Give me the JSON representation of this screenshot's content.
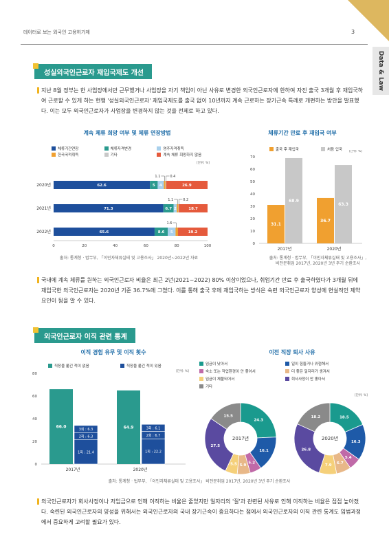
{
  "header": {
    "title": "데이터로 보는 외국인 고용허가제",
    "page": "3",
    "tab": "Data & Law"
  },
  "section1": {
    "title": "성실외국인근로자 재입국제도 개선",
    "para1": "지난 8월 정부는 한 사업장에서만 근무했거나 사업장을 자기 책임이 아닌 사유로 변경한 외국인근로자에 한하여 자진 출국 3개월 후 재입국하여 근로할 수 있게 하는 현행 '성실외국인근로자' 재입국제도를 출국 없이 10년까지 계속 근로하는 장기근속 특례로 개편하는 방안을 발표했다. 이는 모두 외국인근로자가 사업장을 변경하지 않는 것을 전제로 하고 있다.",
    "para2": "국내에 계속 체류를 원하는 외국인근로자 비율은 최근 2년(2021~2022) 80% 이상이었으나, 취업기간 만료 후 출국하였다가 3개월 뒤에 재입국한 외국인근로자는 2020년 기준 36.7%에 그쳤다. 이를 통해 출국 후에 재입국하는 방식은 숙련 외국인근로자 양성에 현실적인 제약 요인이 됨을 알 수 있다."
  },
  "chart1": {
    "title": "계속 체류 희망 여부 및 체류 연장방법",
    "unit": "[단위: %]",
    "source": "출처: 통계청 · 법무부, 「이민자체류실태 및 고용조사」 2020년~2022년 자료",
    "legend": [
      {
        "name": "체류기간연장",
        "color": "#1e4f9c"
      },
      {
        "name": "체류자격변경",
        "color": "#2a9a8e"
      },
      {
        "name": "영주자격취득",
        "color": "#a8d0ec"
      },
      {
        "name": "한국국적취득",
        "color": "#f0a030"
      },
      {
        "name": "기타",
        "color": "#c8c8c8"
      },
      {
        "name": "계속 체류 희망하지 않음",
        "color": "#e55a3c"
      }
    ],
    "rows": [
      {
        "year": "2020년",
        "seg_labels": [
          "62.6",
          "5",
          "4",
          "",
          "",
          "26.9"
        ],
        "callouts": [
          "1.1",
          "0.4"
        ]
      },
      {
        "year": "2021년",
        "seg_labels": [
          "71.3",
          "6.7",
          "2",
          "",
          "",
          "18.7"
        ],
        "callouts": [
          "1.1",
          "0.2"
        ]
      },
      {
        "year": "2022년",
        "seg_labels": [
          "65.6",
          "8.6",
          "5",
          "",
          "",
          "19.2"
        ],
        "callouts": [
          "1.6"
        ]
      }
    ],
    "xticks": [
      "0",
      "20",
      "40",
      "60",
      "80",
      "100"
    ]
  },
  "chart2": {
    "title": "체류기간 만료 후 재입국 여부",
    "unit": "[단위: %]",
    "legend": [
      {
        "name": "출국 후 재입국",
        "color": "#f0a030"
      },
      {
        "name": "처음 입국",
        "color": "#c8c8c8"
      }
    ],
    "yticks": [
      "0",
      "10",
      "20",
      "30",
      "40",
      "50",
      "60",
      "70"
    ],
    "years": [
      "2017년",
      "2020년"
    ],
    "bar_labels": [
      "31.1",
      "68.9",
      "36.7",
      "63.3"
    ],
    "source1": "출처: 통계청 · 법무부, 「이민자체류실태 및 고용조사」,",
    "source2": "비전문취업 2017년, 2020년 3년 주기 순환조사"
  },
  "chart_data": [
    {
      "type": "bar",
      "title": "계속 체류 희망 여부 및 체류 연장방법",
      "categories": [
        "2020년",
        "2021년",
        "2022년"
      ],
      "xlim": [
        0,
        100
      ],
      "series": [
        {
          "name": "체류기간연장",
          "values": [
            62.6,
            71.3,
            65.6
          ]
        },
        {
          "name": "체류자격변경",
          "values": [
            5,
            6.7,
            8.6
          ]
        },
        {
          "name": "영주자격취득",
          "values": [
            4,
            2,
            5
          ]
        },
        {
          "name": "한국국적취득",
          "values": [
            1.1,
            1.1,
            1.6
          ]
        },
        {
          "name": "기타",
          "values": [
            0.4,
            0.2,
            0
          ]
        },
        {
          "name": "계속 체류 희망하지 않음",
          "values": [
            26.9,
            18.7,
            19.2
          ]
        }
      ]
    },
    {
      "type": "bar",
      "title": "체류기간 만료 후 재입국 여부",
      "categories": [
        "2017년",
        "2020년"
      ],
      "ylim": [
        0,
        70
      ],
      "series": [
        {
          "name": "출국 후 재입국",
          "values": [
            31.1,
            36.7
          ]
        },
        {
          "name": "처음 입국",
          "values": [
            68.9,
            63.3
          ]
        }
      ]
    },
    {
      "type": "bar",
      "title": "이직 경험 유무 및 이직 횟수",
      "categories": [
        "2017년",
        "2020년"
      ],
      "ylim": [
        0,
        80
      ],
      "series": [
        {
          "name": "직장을 옮긴 적이 없음",
          "values": [
            66.0,
            64.9
          ]
        },
        {
          "name": "직장을 옮긴 적이 있음",
          "values": [
            34.0,
            35.0
          ]
        }
      ]
    },
    {
      "type": "pie",
      "title": "이전 직장 퇴사 사유",
      "categories": [
        "임금이 낮아서",
        "일이 힘들거나 위험해서",
        "숙소 또는 작업환경이 안 좋아서",
        "더 좋은 일자리가 생겨서",
        "임금이 체불되어서",
        "회사사정이 안 좋아서",
        "기타"
      ],
      "series": [
        {
          "name": "2017년",
          "values": [
            24.3,
            16.1,
            5.2,
            5.9,
            5.5,
            27.5,
            15.5
          ]
        },
        {
          "name": "2020년",
          "values": [
            18.5,
            16.3,
            5.4,
            6.7,
            7.9,
            26.8,
            18.2
          ]
        }
      ]
    }
  ],
  "section2": {
    "title": "외국인근로자 이직 관련 통계",
    "para": "외국인근로자가 회사사정이나 저임금으로 인해 이직하는 비율은 줄었지만 일자리의 '질'과 관련된 사유로 인해 이직하는 비율은 점점 높아졌다. 숙련된 외국인근로자의 양성을 위해서는 외국인근로자의 국내 장기근속이 중요하다는 점에서 외국인근로자의 이직 관련 통계도 입법과정에서 중요하게 고려할 필요가 있다."
  },
  "chart3": {
    "title": "이직 경험 유무 및 이직 횟수",
    "unit": "[단위: %]",
    "legend": [
      {
        "name": "직장을 옮긴 적이 없음",
        "color": "#2a9a8e"
      },
      {
        "name": "직장을 옮긴 적이 있음",
        "color": "#1e4f9c"
      }
    ],
    "yticks": [
      "0",
      "20",
      "40",
      "60",
      "80"
    ],
    "years": [
      "2017년",
      "2020년"
    ],
    "main_labels": [
      "66.0",
      "64.9"
    ],
    "stack_labels": [
      [
        "1회 : 21.4",
        "2회 : 6.3",
        "3회 : 6.3"
      ],
      [
        "1회 : 22.2",
        "2회 : 6.7",
        "3회 : 6.1"
      ]
    ]
  },
  "chart4": {
    "title": "이전 직장 퇴사 사유",
    "unit": "[단위: %]",
    "legend": [
      {
        "name": "임금이 낮아서",
        "color": "#1a9a8e"
      },
      {
        "name": "일이 힘들거나 위험해서",
        "color": "#1e5aa8"
      },
      {
        "name": "숙소 또는 작업환경이 안 좋아서",
        "color": "#c06aa8"
      },
      {
        "name": "더 좋은 일자리가 생겨서",
        "color": "#e8b888"
      },
      {
        "name": "임금이 체불되어서",
        "color": "#f5d07a"
      },
      {
        "name": "회사사정이 안 좋아서",
        "color": "#5a4aa0"
      },
      {
        "name": "기타",
        "color": "#8a8a8a"
      }
    ],
    "pies": [
      {
        "year": "2017년",
        "labels": [
          "24.3",
          "16.1",
          "5.2",
          "5.9",
          "5.5",
          "27.5",
          "15.5"
        ]
      },
      {
        "year": "2020년",
        "labels": [
          "18.5",
          "16.3",
          "5.4",
          "6.7",
          "7.9",
          "26.8",
          "18.2"
        ]
      }
    ]
  },
  "source_bottom": "출처: 통계청 · 법무부, 「이민자체류실태 및 고용조사」 비전문취업 2017년, 2020년 3년 주기 순환조사"
}
